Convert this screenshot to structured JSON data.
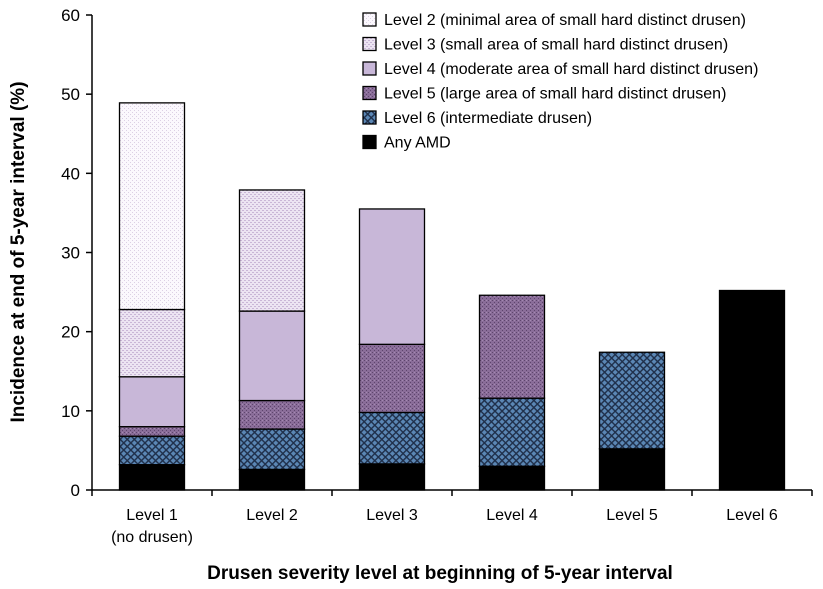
{
  "chart_data": {
    "type": "bar",
    "stacked": true,
    "title": "",
    "xlabel": "Drusen severity level at beginning of 5-year interval",
    "ylabel": "Incidence at end of 5-year interval (%)",
    "ylim": [
      0,
      60
    ],
    "yticks": [
      0,
      10,
      20,
      30,
      40,
      50,
      60
    ],
    "grid": false,
    "legend_position": "top-right",
    "categories": [
      [
        "Level 1",
        "(no drusen)"
      ],
      [
        "Level 2"
      ],
      [
        "Level 3"
      ],
      [
        "Level 4"
      ],
      [
        "Level 5"
      ],
      [
        "Level 6"
      ]
    ],
    "series": [
      {
        "name": "Any AMD",
        "key": "any-amd",
        "values": [
          3.2,
          2.6,
          3.3,
          3.0,
          5.2,
          25.2
        ]
      },
      {
        "name": "Level 6 (intermediate drusen)",
        "key": "level-6",
        "values": [
          3.6,
          5.1,
          6.5,
          8.6,
          12.2,
          0
        ]
      },
      {
        "name": "Level 5 (large area of small hard distinct drusen)",
        "key": "level-5",
        "values": [
          1.2,
          3.6,
          8.6,
          13.0,
          0,
          0
        ]
      },
      {
        "name": "Level 4 (moderate area of small hard distinct drusen)",
        "key": "level-4",
        "values": [
          6.3,
          11.3,
          17.1,
          0,
          0,
          0
        ]
      },
      {
        "name": "Level 3 (small area of small hard distinct drusen)",
        "key": "level-3",
        "values": [
          8.5,
          15.3,
          0,
          0,
          0,
          0
        ]
      },
      {
        "name": "Level 2 (minimal area of small hard distinct drusen)",
        "key": "level-2",
        "values": [
          26.1,
          0,
          0,
          0,
          0,
          0
        ]
      }
    ],
    "legend_order": [
      "level-2",
      "level-3",
      "level-4",
      "level-5",
      "level-6",
      "any-amd"
    ]
  }
}
